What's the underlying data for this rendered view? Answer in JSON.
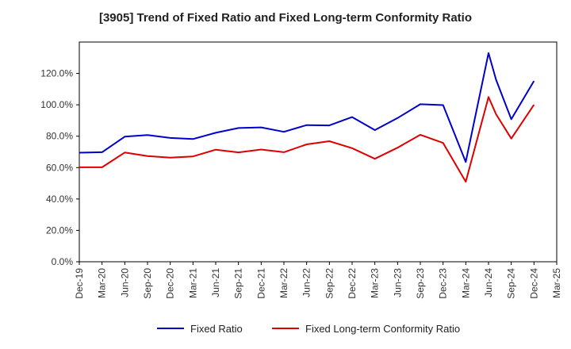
{
  "chart_data": {
    "type": "line",
    "title": "[3905]  Trend of Fixed Ratio and Fixed Long-term Conformity Ratio",
    "xlabel": "",
    "ylabel": "",
    "ylim": [
      0,
      140
    ],
    "y_ticks": [
      "0.0%",
      "20.0%",
      "40.0%",
      "60.0%",
      "80.0%",
      "100.0%",
      "120.0%"
    ],
    "y_tick_values": [
      0,
      20,
      40,
      60,
      80,
      100,
      120
    ],
    "categories": [
      "Dec-19",
      "Mar-20",
      "Jun-20",
      "Sep-20",
      "Dec-20",
      "Mar-21",
      "Jun-21",
      "Sep-21",
      "Dec-21",
      "Mar-22",
      "Jun-22",
      "Sep-22",
      "Dec-22",
      "Mar-23",
      "Jun-23",
      "Sep-23",
      "Dec-23",
      "Mar-24",
      "Jun-24",
      "Sep-24",
      "Dec-24",
      "Mar-25"
    ],
    "grid": true,
    "legend_position": "bottom",
    "series": [
      {
        "name": "Fixed Ratio",
        "color": "#0000cc",
        "x": [
          "Dec-19",
          "Mar-20",
          "Jun-20",
          "Sep-20",
          "Dec-20",
          "Mar-21",
          "Jun-21",
          "Sep-21",
          "Dec-21",
          "Mar-22",
          "Jun-22",
          "Sep-22",
          "Dec-22",
          "Mar-23",
          "Jun-23",
          "Sep-23",
          "Dec-23",
          "Mar-24",
          "Jun-24",
          "Jul-24",
          "Sep-24",
          "Dec-24"
        ],
        "xi": [
          0,
          1,
          2,
          3,
          4,
          5,
          6,
          7,
          8,
          9,
          10,
          11,
          12,
          13,
          14,
          15,
          16,
          17,
          18,
          18.33,
          19,
          20
        ],
        "values": [
          69.5,
          69.8,
          79.7,
          80.7,
          78.9,
          78.2,
          82.2,
          85.2,
          85.6,
          82.8,
          87.1,
          86.9,
          92.2,
          83.9,
          91.6,
          100.4,
          99.8,
          63.6,
          133.0,
          116.0,
          90.8,
          115.2
        ]
      },
      {
        "name": "Fixed Long-term Conformity Ratio",
        "color": "#dd0000",
        "x": [
          "Dec-19",
          "Mar-20",
          "Jun-20",
          "Sep-20",
          "Dec-20",
          "Mar-21",
          "Jun-21",
          "Sep-21",
          "Dec-21",
          "Mar-22",
          "Jun-22",
          "Sep-22",
          "Dec-22",
          "Mar-23",
          "Jun-23",
          "Sep-23",
          "Dec-23",
          "Mar-24",
          "Jun-24",
          "Jul-24",
          "Sep-24",
          "Dec-24"
        ],
        "xi": [
          0,
          1,
          2,
          3,
          4,
          5,
          6,
          7,
          8,
          9,
          10,
          11,
          12,
          13,
          14,
          15,
          16,
          17,
          18,
          18.33,
          19,
          20
        ],
        "values": [
          60.2,
          60.2,
          69.6,
          67.3,
          66.3,
          67.1,
          71.4,
          69.7,
          71.5,
          69.8,
          74.8,
          76.8,
          72.4,
          65.6,
          72.7,
          80.9,
          75.7,
          51.0,
          105.0,
          94.0,
          78.5,
          100.0
        ]
      }
    ]
  }
}
